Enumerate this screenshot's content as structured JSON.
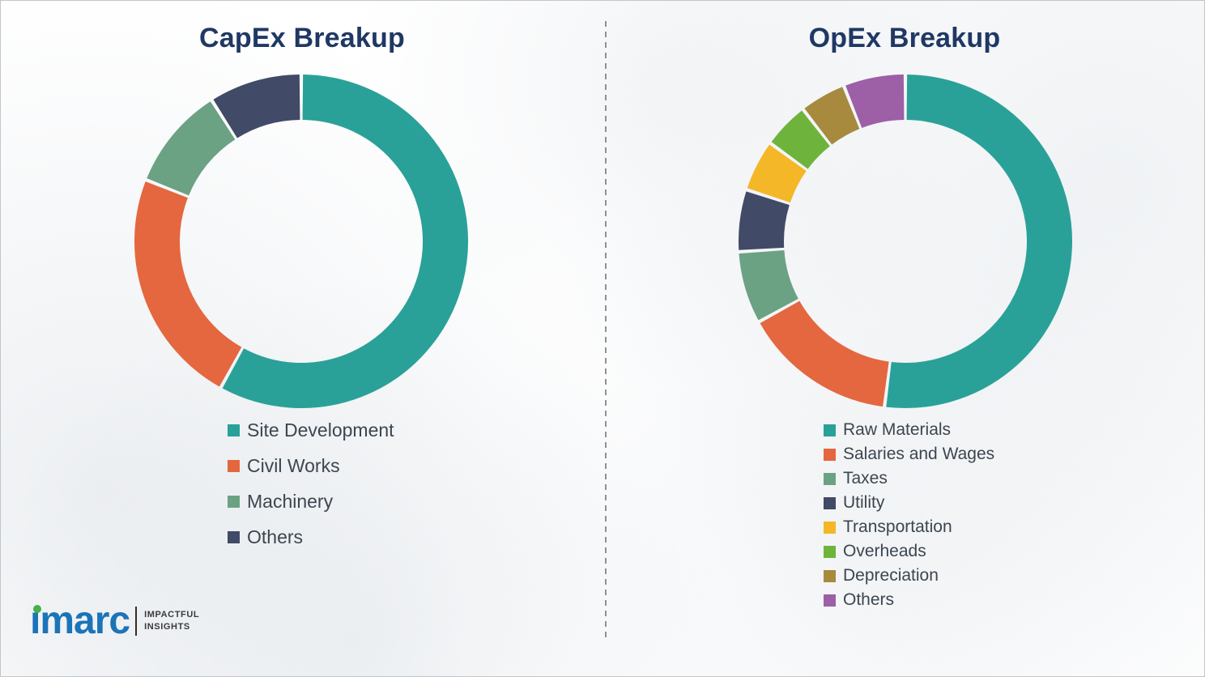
{
  "page": {
    "border_color": "#c2c6ca",
    "divider_style": "dashed-vertical",
    "title_color": "#1f3864",
    "legend_text_color": "#3c4650"
  },
  "chart_data": [
    {
      "type": "pie",
      "donut": true,
      "title": "CapEx Breakup",
      "categories": [
        "Site Development",
        "Civil Works",
        "Machinery",
        "Others"
      ],
      "values": [
        58,
        23,
        10,
        9
      ],
      "colors": [
        "#2aa198",
        "#e4673f",
        "#6ba283",
        "#414a66"
      ],
      "legend_position": "bottom-left",
      "units": "percent-of-total"
    },
    {
      "type": "pie",
      "donut": true,
      "title": "OpEx Breakup",
      "categories": [
        "Raw Materials",
        "Salaries and Wages",
        "Taxes",
        "Utility",
        "Transportation",
        "Overheads",
        "Depreciation",
        "Others"
      ],
      "values": [
        52,
        15,
        7,
        6,
        5,
        4.5,
        4.5,
        6
      ],
      "colors": [
        "#2aa198",
        "#e4673f",
        "#6ba283",
        "#414a66",
        "#f4b727",
        "#6eb43c",
        "#a78a3e",
        "#9d5fa5"
      ],
      "legend_position": "bottom-left",
      "units": "percent-of-total"
    }
  ],
  "logo": {
    "brand": "imarc",
    "brand_color": "#1b74b8",
    "dot_color": "#43b049",
    "tagline": [
      "IMPACTFUL",
      "INSIGHTS"
    ]
  }
}
